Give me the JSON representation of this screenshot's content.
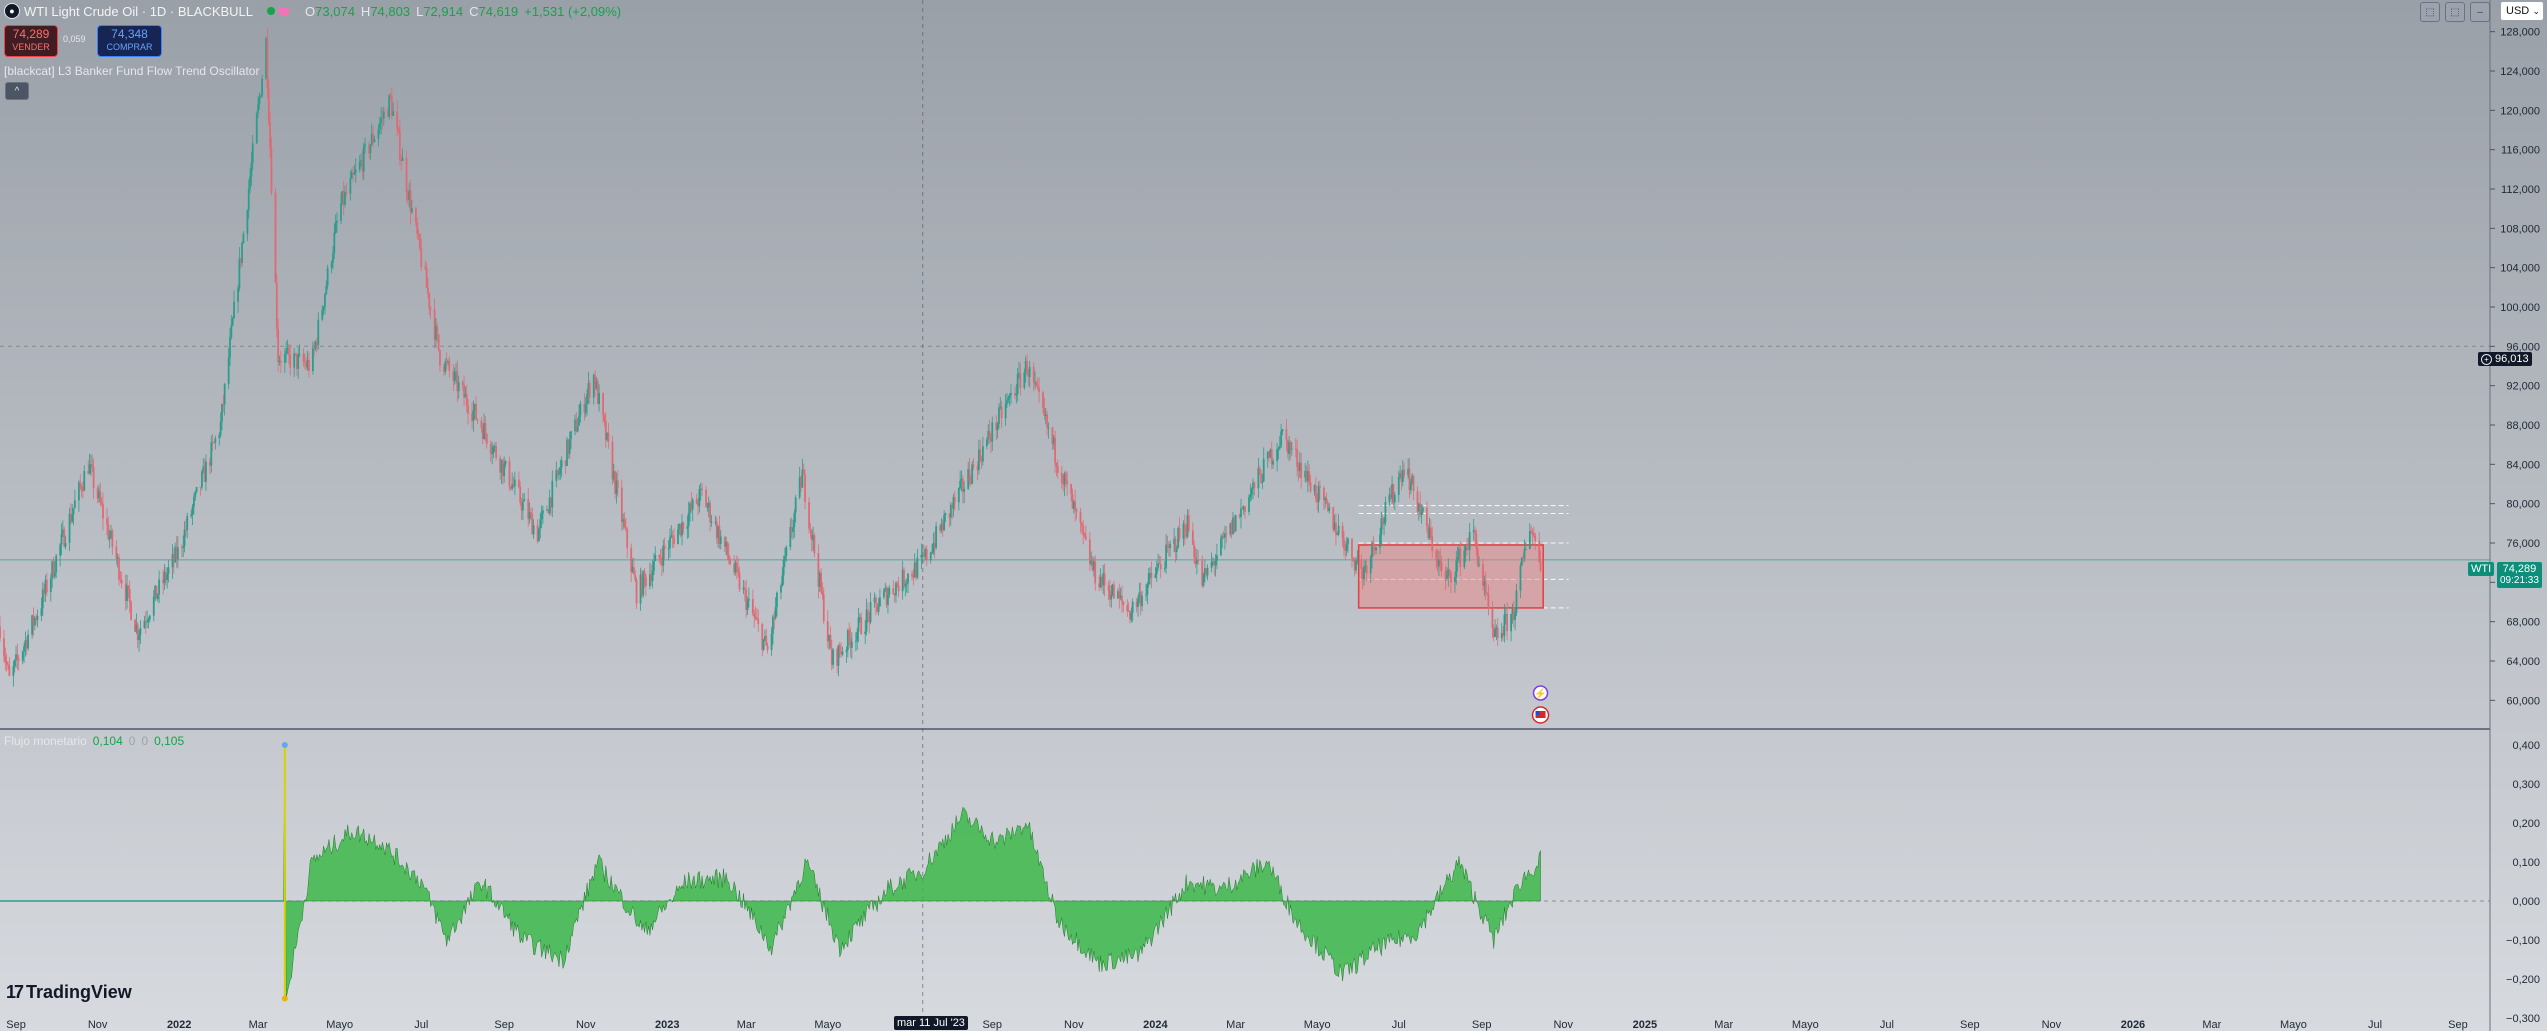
{
  "header": {
    "title": "WTI Light Crude Oil · 1D · BLACKBULL",
    "ohlc": [
      {
        "label": "O",
        "value": "73,074"
      },
      {
        "label": "H",
        "value": "74,803"
      },
      {
        "label": "L",
        "value": "72,914"
      },
      {
        "label": "C",
        "value": "74,619"
      }
    ],
    "change": "+1,531 (+2,09%)"
  },
  "trade": {
    "sell_price": "74,289",
    "sell_label": "VENDER",
    "spread": "0,059",
    "buy_price": "74,348",
    "buy_label": "COMPRAR"
  },
  "indicator": {
    "title": "[blackcat] L3 Banker Fund Flow Trend Oscillator",
    "collapse_glyph": "^"
  },
  "subpane": {
    "title": "Flujo monetario",
    "v1": "0,104",
    "v2": "0",
    "v3": "0",
    "v4": "0,105"
  },
  "toolbar": {
    "currency": "USD",
    "currency_arrow": "⌄"
  },
  "price_labels": {
    "crosshair": "96,013",
    "symbol": "WTI",
    "last": "74,289",
    "countdown": "09:21:33"
  },
  "date_highlight": "mar 11 Jul '23",
  "brand": "TradingView",
  "colors": {
    "bg_top": "#9aa0a8",
    "bg_bottom": "#d7dadf",
    "up": "#2e9c8c",
    "down": "#e06a73",
    "osc": "#3cb84a",
    "zone": "#f08080",
    "zone_border": "#e53e3e",
    "accent_tag": "#0b8e7a"
  },
  "chart_data": [
    {
      "type": "candlestick",
      "symbol": "WTI",
      "y_ticks": [
        "60,000",
        "64,000",
        "68,000",
        "72,000",
        "76,000",
        "80,000",
        "84,000",
        "88,000",
        "92,000",
        "96,000",
        "100,000",
        "104,000",
        "108,000",
        "112,000",
        "116,000",
        "120,000",
        "124,000",
        "128,000"
      ],
      "ylim": [
        58,
        130
      ],
      "x_ticks": [
        "Sep",
        "Nov",
        "2022",
        "Mar",
        "Mayo",
        "Jul",
        "Sep",
        "Nov",
        "2023",
        "Mar",
        "Mayo",
        "Jul",
        "Sep",
        "Nov",
        "2024",
        "Mar",
        "Mayo",
        "Jul",
        "Sep",
        "Nov",
        "2025",
        "Mar",
        "Mayo",
        "Jul",
        "Sep",
        "Nov",
        "2026",
        "Mar",
        "Mayo",
        "Jul",
        "Sep"
      ],
      "x_range": [
        "2021-08-20",
        "2026-09-25"
      ],
      "price_path": [
        [
          "2021-08-20",
          67.5
        ],
        [
          "2021-08-27",
          62
        ],
        [
          "2021-09-20",
          70
        ],
        [
          "2021-10-25",
          84
        ],
        [
          "2021-12-01",
          67
        ],
        [
          "2021-12-31",
          75
        ],
        [
          "2022-02-01",
          88
        ],
        [
          "2022-03-07",
          127
        ],
        [
          "2022-03-16",
          95
        ],
        [
          "2022-04-10",
          94
        ],
        [
          "2022-05-01",
          110
        ],
        [
          "2022-06-08",
          121
        ],
        [
          "2022-07-15",
          95
        ],
        [
          "2022-08-15",
          88
        ],
        [
          "2022-09-26",
          77
        ],
        [
          "2022-11-07",
          93
        ],
        [
          "2022-12-09",
          71
        ],
        [
          "2023-01-27",
          81
        ],
        [
          "2023-03-17",
          65
        ],
        [
          "2023-04-12",
          83
        ],
        [
          "2023-05-04",
          64
        ],
        [
          "2023-06-15",
          71
        ],
        [
          "2023-07-11",
          74
        ],
        [
          "2023-09-27",
          94
        ],
        [
          "2023-11-16",
          73
        ],
        [
          "2023-12-13",
          69
        ],
        [
          "2024-01-25",
          78
        ],
        [
          "2024-02-05",
          72
        ],
        [
          "2024-04-05",
          87
        ],
        [
          "2024-06-04",
          73
        ],
        [
          "2024-07-05",
          84
        ],
        [
          "2024-08-05",
          72
        ],
        [
          "2024-08-26",
          77
        ],
        [
          "2024-09-10",
          66
        ],
        [
          "2024-09-25",
          69
        ],
        [
          "2024-10-07",
          78
        ],
        [
          "2024-10-15",
          74.3
        ]
      ],
      "horizontal_levels": [
        79.8,
        79.0,
        76.0,
        72.3,
        69.4,
        96.013
      ],
      "zone": {
        "from": "2024-06-01",
        "to": "2024-10-17",
        "top": 75.8,
        "bottom": 69.4
      },
      "last_price": 74.289
    },
    {
      "type": "area",
      "title": "Flujo monetario",
      "y_ticks": [
        "−0,300",
        "−0,200",
        "−0,100",
        "0,000",
        "0,100",
        "0,200",
        "0,300",
        "0,400"
      ],
      "ylim": [
        -0.3,
        0.4
      ],
      "series_path": [
        [
          "2022-03-20",
          0.0
        ],
        [
          "2022-03-21",
          0.4
        ],
        [
          "2022-03-22",
          -0.25
        ],
        [
          "2022-04-10",
          0.1
        ],
        [
          "2022-05-10",
          0.18
        ],
        [
          "2022-06-01",
          0.15
        ],
        [
          "2022-07-01",
          0.05
        ],
        [
          "2022-07-20",
          -0.1
        ],
        [
          "2022-08-15",
          0.05
        ],
        [
          "2022-09-15",
          -0.1
        ],
        [
          "2022-10-15",
          -0.15
        ],
        [
          "2022-11-10",
          0.1
        ],
        [
          "2022-12-15",
          -0.08
        ],
        [
          "2023-01-15",
          0.05
        ],
        [
          "2023-02-15",
          0.06
        ],
        [
          "2023-03-20",
          -0.12
        ],
        [
          "2023-04-15",
          0.1
        ],
        [
          "2023-05-10",
          -0.12
        ],
        [
          "2023-06-15",
          0.03
        ],
        [
          "2023-07-11",
          0.08
        ],
        [
          "2023-08-10",
          0.22
        ],
        [
          "2023-09-05",
          0.15
        ],
        [
          "2023-09-27",
          0.2
        ],
        [
          "2023-10-20",
          -0.05
        ],
        [
          "2023-11-20",
          -0.16
        ],
        [
          "2023-12-20",
          -0.14
        ],
        [
          "2024-01-25",
          0.05
        ],
        [
          "2024-02-20",
          0.03
        ],
        [
          "2024-03-25",
          0.1
        ],
        [
          "2024-04-15",
          -0.05
        ],
        [
          "2024-05-20",
          -0.19
        ],
        [
          "2024-06-15",
          -0.12
        ],
        [
          "2024-07-15",
          -0.08
        ],
        [
          "2024-08-15",
          0.1
        ],
        [
          "2024-09-10",
          -0.1
        ],
        [
          "2024-09-30",
          0.05
        ],
        [
          "2024-10-15",
          0.105
        ]
      ]
    }
  ]
}
